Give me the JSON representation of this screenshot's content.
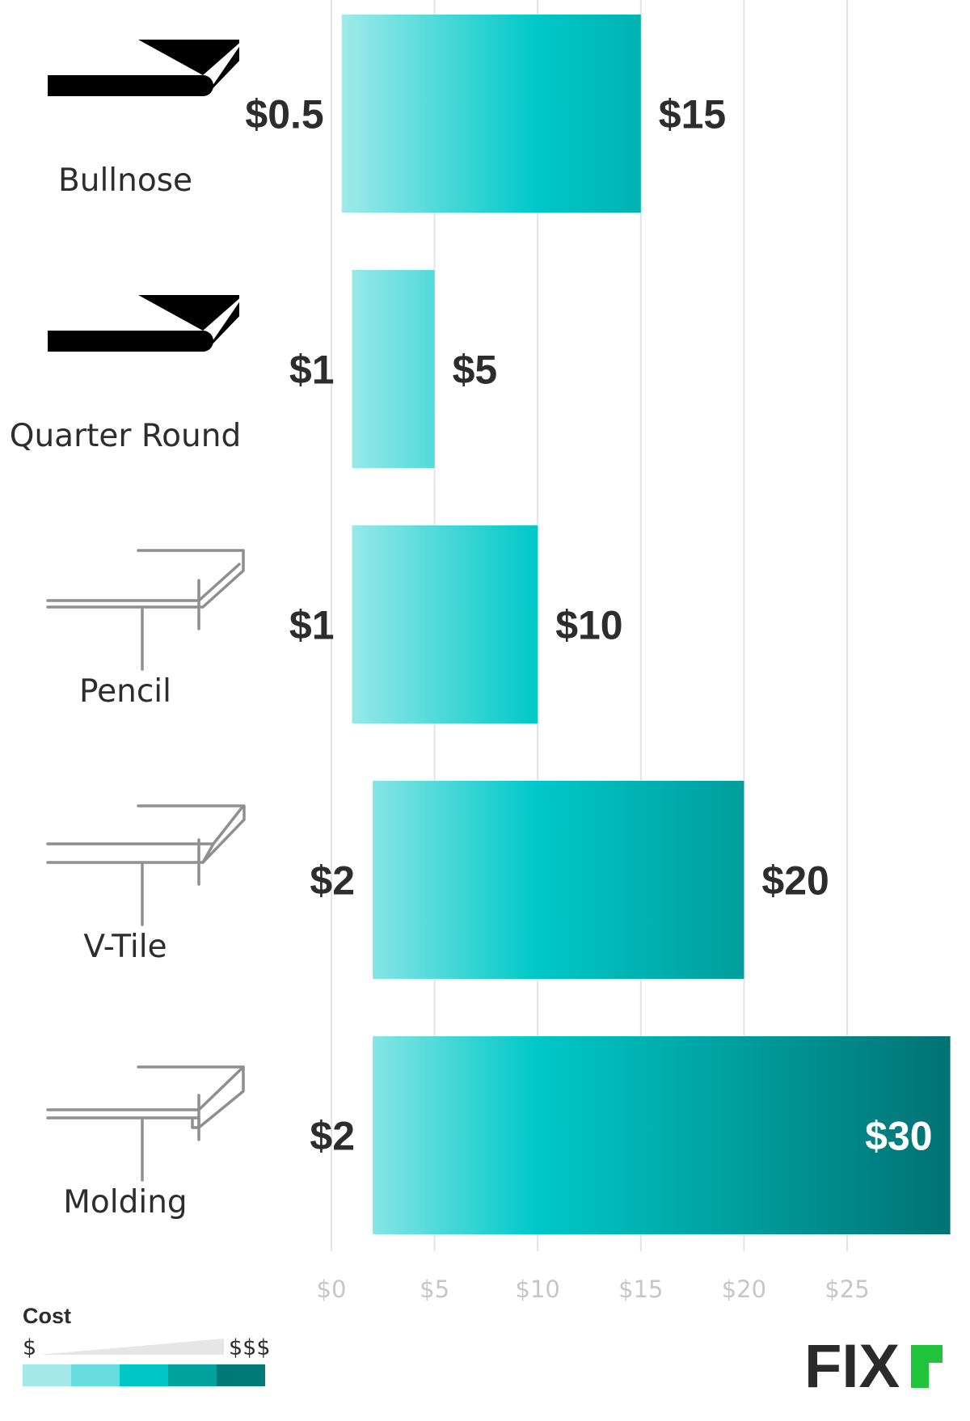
{
  "chart_data": {
    "type": "bar",
    "orientation": "horizontal",
    "categories": [
      "Bullnose",
      "Quarter Round",
      "Pencil",
      "V-Tile",
      "Molding"
    ],
    "series": [
      {
        "low": [
          0.5,
          1,
          1,
          2,
          2
        ],
        "high": [
          15,
          5,
          10,
          20,
          30
        ]
      }
    ],
    "low_labels": [
      "$0.5",
      "$1",
      "$1",
      "$2",
      "$2"
    ],
    "high_labels": [
      "$15",
      "$5",
      "$10",
      "$20",
      "$30"
    ],
    "icons": [
      "bullnose-edge-icon",
      "quarter-round-edge-icon",
      "pencil-edge-icon",
      "v-tile-edge-icon",
      "molding-edge-icon"
    ],
    "xlim": [
      0,
      30
    ],
    "xticks": [
      0,
      5,
      10,
      15,
      20,
      25
    ],
    "xtick_labels": [
      "$0",
      "$5",
      "$10",
      "$15",
      "$20",
      "$25"
    ],
    "grid": true,
    "legend_placement": "bottom-left",
    "gradient_colors": [
      "#a8ecec",
      "#00c8c8",
      "#007272"
    ]
  },
  "legend": {
    "title": "Cost",
    "low_label": "$",
    "high_label": "$$$",
    "swatches": [
      "#a4e8e9",
      "#66dcdc",
      "#00c6c6",
      "#00a29e",
      "#007a76"
    ]
  },
  "brand": {
    "logo_text": "FIX",
    "accent": "#1fc43a"
  }
}
